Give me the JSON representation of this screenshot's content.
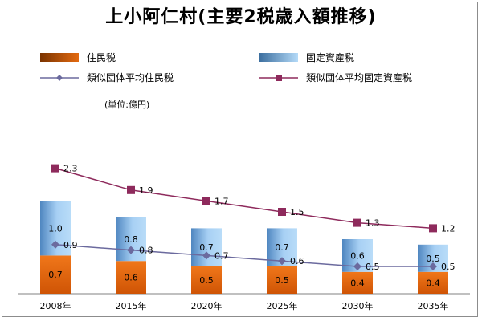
{
  "chart_data": {
    "type": "bar",
    "title": "上小阿仁村(主要2税歳入額推移)",
    "unit_label": "(単位:億円)",
    "categories": [
      "2008年",
      "2015年",
      "2020年",
      "2025年",
      "2030年",
      "2035年"
    ],
    "stacked": true,
    "ylim": [
      0,
      2.6
    ],
    "series": [
      {
        "name": "住民税",
        "kind": "bar",
        "color": "#e2670f",
        "values": [
          0.7,
          0.6,
          0.5,
          0.5,
          0.4,
          0.4
        ]
      },
      {
        "name": "固定資産税",
        "kind": "bar",
        "color": "#8ec0ee",
        "values": [
          1.0,
          0.8,
          0.7,
          0.7,
          0.6,
          0.5
        ]
      },
      {
        "name": "類似団体平均住民税",
        "kind": "line",
        "color": "#6b6a9e",
        "marker": "diamond",
        "values": [
          0.9,
          0.8,
          0.7,
          0.6,
          0.5,
          0.5
        ]
      },
      {
        "name": "類似団体平均固定資産税",
        "kind": "line",
        "color": "#8e2a5c",
        "marker": "square",
        "values": [
          2.3,
          1.9,
          1.7,
          1.5,
          1.3,
          1.2
        ]
      }
    ],
    "legend_position": "top",
    "grid": false
  }
}
